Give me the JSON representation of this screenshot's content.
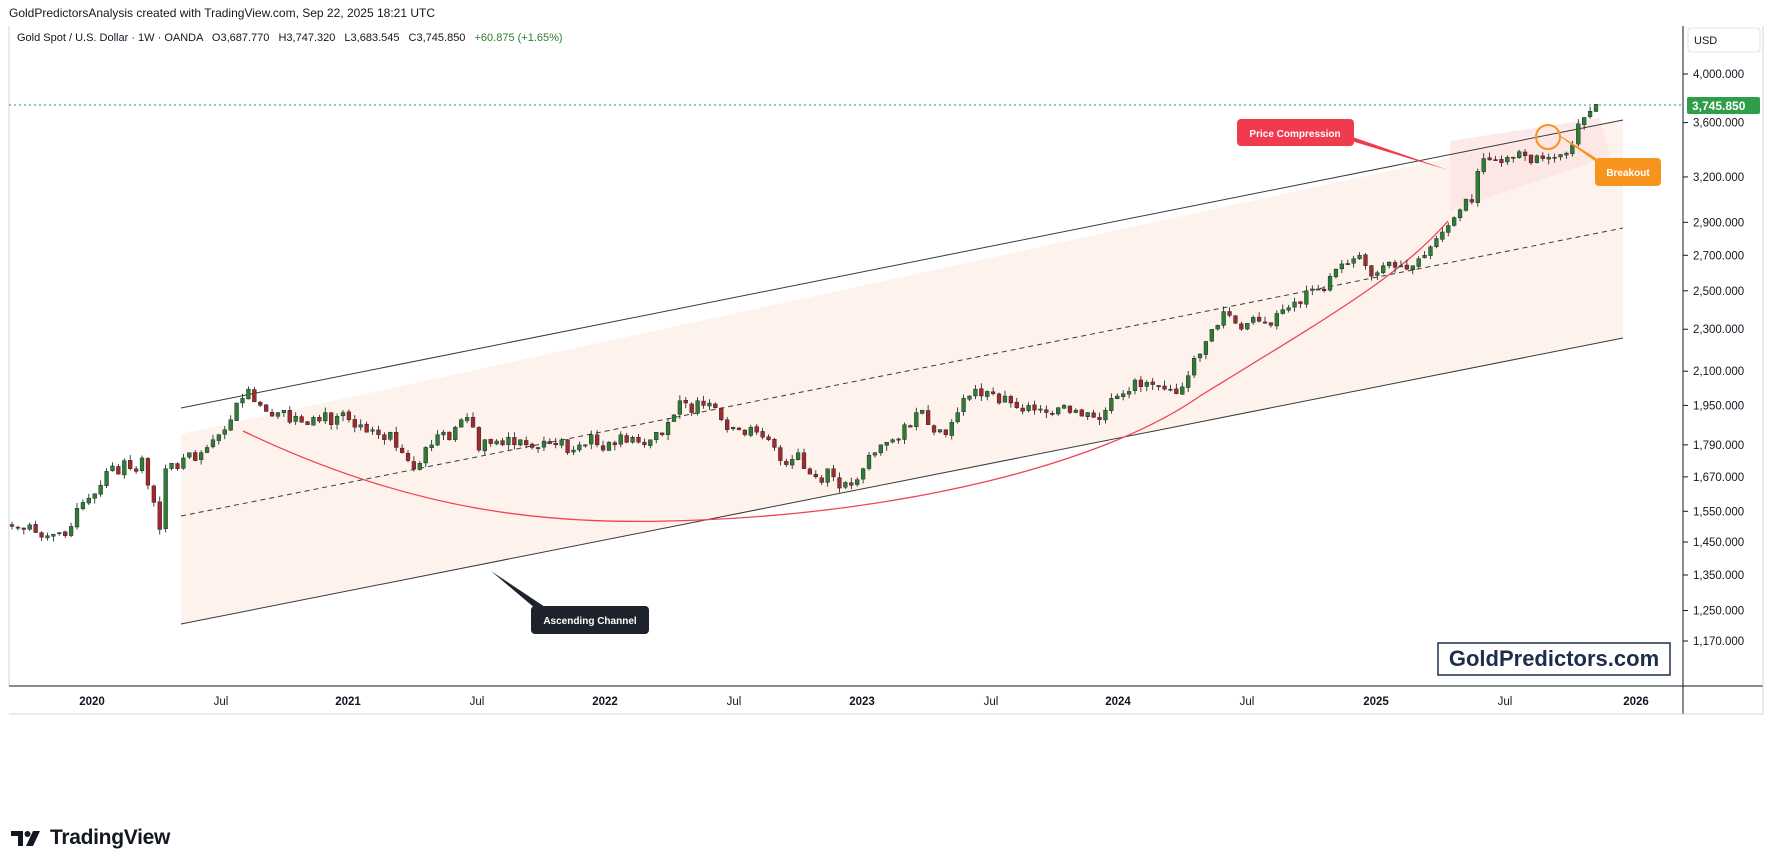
{
  "header": {
    "caption": "GoldPredictorsAnalysis created with TradingView.com, Sep 22, 2025 18:21 UTC"
  },
  "legend": {
    "symbol": "Gold Spot / U.S. Dollar · 1W · OANDA",
    "open": "O3,687.770",
    "high": "H3,747.320",
    "low": "L3,683.545",
    "close": "C3,745.850",
    "change": "+60.875 (+1.65%)"
  },
  "currency": "USD",
  "last_price": "3,745.850",
  "annotations": {
    "price_compression": "Price Compression",
    "breakout": "Breakout",
    "ascending_channel": "Ascending Channel"
  },
  "watermark": "GoldPredictors.com",
  "footer": {
    "brand": "TradingView"
  },
  "colors": {
    "up": "#2e7d32",
    "down": "#a32a2a",
    "last_price_tag": "#2e9e4a",
    "price_compression_tag": "#ef3b4d",
    "breakout_tag": "#f7941d",
    "channel_tag": "#1e222d",
    "curve": "#ee4455",
    "channel_fill": "#fdf3ec"
  },
  "chart_data": {
    "type": "candlestick",
    "instrument": "Gold Spot / U.S. Dollar",
    "timeframe": "1W",
    "y_scale": "log",
    "y_ticks": [
      "4,000.000",
      "3,600.000",
      "3,200.000",
      "2,900.000",
      "2,700.000",
      "2,500.000",
      "2,300.000",
      "2,100.000",
      "1,950.000",
      "1,790.000",
      "1,670.000",
      "1,550.000",
      "1,450.000",
      "1,350.000",
      "1,250.000",
      "1,170.000"
    ],
    "x_ticks": [
      "2020",
      "Jul",
      "2021",
      "Jul",
      "2022",
      "Jul",
      "2023",
      "Jul",
      "2024",
      "Jul",
      "2025",
      "Jul",
      "2026"
    ],
    "x_range": [
      "2019-09",
      "2026-03"
    ],
    "y_range": [
      1120,
      4300
    ],
    "closes": [
      1500,
      1495,
      1490,
      1505,
      1480,
      1465,
      1470,
      1475,
      1480,
      1470,
      1500,
      1560,
      1580,
      1595,
      1610,
      1640,
      1690,
      1710,
      1680,
      1730,
      1700,
      1690,
      1740,
      1640,
      1580,
      1490,
      1700,
      1720,
      1700,
      1740,
      1760,
      1730,
      1760,
      1780,
      1810,
      1830,
      1850,
      1890,
      1960,
      1980,
      2020,
      1965,
      1950,
      1925,
      1905,
      1920,
      1930,
      1880,
      1905,
      1880,
      1870,
      1900,
      1885,
      1920,
      1870,
      1905,
      1920,
      1890,
      1860,
      1870,
      1840,
      1850,
      1830,
      1810,
      1840,
      1780,
      1760,
      1730,
      1700,
      1720,
      1780,
      1790,
      1830,
      1840,
      1810,
      1860,
      1890,
      1900,
      1860,
      1770,
      1810,
      1795,
      1805,
      1790,
      1820,
      1790,
      1810,
      1790,
      1780,
      1780,
      1805,
      1795,
      1790,
      1810,
      1760,
      1770,
      1790,
      1790,
      1830,
      1790,
      1770,
      1800,
      1790,
      1830,
      1800,
      1820,
      1800,
      1790,
      1810,
      1840,
      1830,
      1880,
      1910,
      1970,
      1960,
      1920,
      1970,
      1950,
      1960,
      1940,
      1890,
      1850,
      1860,
      1850,
      1830,
      1860,
      1840,
      1820,
      1810,
      1780,
      1730,
      1715,
      1735,
      1760,
      1700,
      1680,
      1670,
      1650,
      1700,
      1670,
      1630,
      1650,
      1640,
      1660,
      1700,
      1750,
      1760,
      1790,
      1800,
      1810,
      1810,
      1870,
      1860,
      1920,
      1930,
      1870,
      1840,
      1850,
      1830,
      1880,
      1920,
      1980,
      1990,
      2020,
      1990,
      2010,
      2000,
      1960,
      1990,
      1960,
      1940,
      1925,
      1950,
      1930,
      1935,
      1920,
      1915,
      1940,
      1950,
      1920,
      1930,
      1905,
      1920,
      1900,
      1890,
      1930,
      1980,
      1990,
      2000,
      2010,
      2060,
      2030,
      2050,
      2040,
      2030,
      2020,
      2020,
      2000,
      2030,
      2080,
      2160,
      2180,
      2240,
      2300,
      2320,
      2390,
      2370,
      2330,
      2300,
      2330,
      2360,
      2340,
      2330,
      2320,
      2380,
      2400,
      2410,
      2440,
      2430,
      2500,
      2510,
      2510,
      2500,
      2580,
      2620,
      2650,
      2650,
      2680,
      2700,
      2640,
      2580,
      2600,
      2640,
      2660,
      2630,
      2640,
      2620,
      2640,
      2680,
      2700,
      2750,
      2800,
      2840,
      2880,
      2930,
      2980,
      3050,
      3030,
      3240,
      3330,
      3320,
      3320,
      3300,
      3340,
      3340,
      3380,
      3350,
      3300,
      3350,
      3330,
      3340,
      3340,
      3360,
      3370,
      3430,
      3590,
      3640,
      3690,
      3745.85
    ],
    "ohlc_last": {
      "open": 3687.77,
      "high": 3747.32,
      "low": 3683.545,
      "close": 3745.85,
      "change": 60.875,
      "change_pct": 1.65
    },
    "channel": {
      "upper": [
        [
          "2020-06",
          1980
        ],
        [
          "2025-10",
          3630
        ]
      ],
      "lower": [
        [
          "2020-06",
          1255
        ],
        [
          "2025-10",
          2310
        ]
      ],
      "middle": [
        [
          "2020-06",
          1580
        ],
        [
          "2025-10",
          2900
        ]
      ]
    },
    "curve": [
      [
        "2020-08",
        1925
      ],
      [
        "2021-08",
        1640
      ],
      [
        "2022-08",
        1580
      ],
      [
        "2023-08",
        1690
      ],
      [
        "2024-08",
        2110
      ],
      [
        "2025-04",
        2930
      ]
    ]
  }
}
